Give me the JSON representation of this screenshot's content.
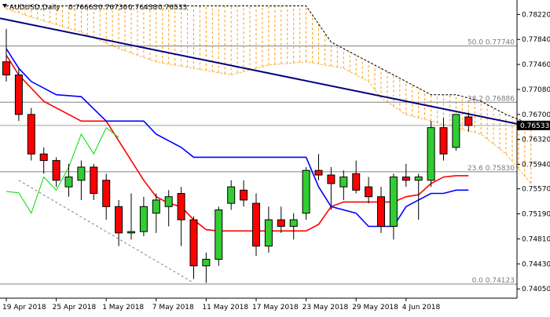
{
  "chart_data": {
    "type": "candlestick",
    "header": {
      "symbol": "AUDUSD,Daily",
      "ohlc": [
        "0.76663",
        "0.76730",
        "0.76438",
        "0.76533"
      ]
    },
    "price_axis": {
      "ymin": 0.7404,
      "ymax": 0.7826,
      "ticks": [
        "0.78220",
        "0.77840",
        "0.77460",
        "0.77080",
        "0.76700",
        "0.76320",
        "0.75940",
        "0.75570",
        "0.75190",
        "0.74810",
        "0.74430",
        "0.74050"
      ],
      "current_price_label": "0.76533"
    },
    "time_axis": {
      "labels": [
        {
          "text": "19 Apr 2018",
          "bar": 0
        },
        {
          "text": "25 Apr 2018",
          "bar": 4
        },
        {
          "text": "1 May 2018",
          "bar": 8
        },
        {
          "text": "7 May 2018",
          "bar": 12
        },
        {
          "text": "11 May 2018",
          "bar": 16
        },
        {
          "text": "17 May 2018",
          "bar": 20
        },
        {
          "text": "23 May 2018",
          "bar": 24
        },
        {
          "text": "29 May 2018",
          "bar": 28
        },
        {
          "text": "4 Jun 2018",
          "bar": 32
        }
      ]
    },
    "fib_levels": [
      {
        "label": "50.0 0.77740",
        "value": 0.7774
      },
      {
        "label": "38.2 0.76886",
        "value": 0.76886
      },
      {
        "label": "23.6 0.75830",
        "value": 0.7583
      },
      {
        "label": "0.0 0.74123",
        "value": 0.74123
      }
    ],
    "current_price": 0.76533,
    "candles": [
      {
        "o": 0.775,
        "h": 0.78,
        "l": 0.772,
        "c": 0.773
      },
      {
        "o": 0.773,
        "h": 0.774,
        "l": 0.766,
        "c": 0.767
      },
      {
        "o": 0.767,
        "h": 0.768,
        "l": 0.76,
        "c": 0.761
      },
      {
        "o": 0.761,
        "h": 0.762,
        "l": 0.758,
        "c": 0.76
      },
      {
        "o": 0.76,
        "h": 0.7605,
        "l": 0.756,
        "c": 0.757
      },
      {
        "o": 0.756,
        "h": 0.7595,
        "l": 0.7545,
        "c": 0.7575
      },
      {
        "o": 0.757,
        "h": 0.76,
        "l": 0.754,
        "c": 0.759
      },
      {
        "o": 0.759,
        "h": 0.7595,
        "l": 0.754,
        "c": 0.755
      },
      {
        "o": 0.757,
        "h": 0.758,
        "l": 0.751,
        "c": 0.753
      },
      {
        "o": 0.753,
        "h": 0.754,
        "l": 0.747,
        "c": 0.749
      },
      {
        "o": 0.749,
        "h": 0.755,
        "l": 0.748,
        "c": 0.7492
      },
      {
        "o": 0.7492,
        "h": 0.7545,
        "l": 0.7485,
        "c": 0.753
      },
      {
        "o": 0.752,
        "h": 0.755,
        "l": 0.749,
        "c": 0.754
      },
      {
        "o": 0.753,
        "h": 0.7555,
        "l": 0.75,
        "c": 0.7545
      },
      {
        "o": 0.755,
        "h": 0.756,
        "l": 0.747,
        "c": 0.751
      },
      {
        "o": 0.751,
        "h": 0.7515,
        "l": 0.742,
        "c": 0.744
      },
      {
        "o": 0.744,
        "h": 0.746,
        "l": 0.7414,
        "c": 0.745
      },
      {
        "o": 0.745,
        "h": 0.753,
        "l": 0.744,
        "c": 0.7525
      },
      {
        "o": 0.7535,
        "h": 0.757,
        "l": 0.7525,
        "c": 0.756
      },
      {
        "o": 0.7555,
        "h": 0.757,
        "l": 0.753,
        "c": 0.754
      },
      {
        "o": 0.7535,
        "h": 0.755,
        "l": 0.7455,
        "c": 0.747
      },
      {
        "o": 0.747,
        "h": 0.753,
        "l": 0.746,
        "c": 0.751
      },
      {
        "o": 0.751,
        "h": 0.753,
        "l": 0.749,
        "c": 0.75
      },
      {
        "o": 0.75,
        "h": 0.752,
        "l": 0.748,
        "c": 0.751
      },
      {
        "o": 0.752,
        "h": 0.759,
        "l": 0.751,
        "c": 0.7585
      },
      {
        "o": 0.7585,
        "h": 0.761,
        "l": 0.757,
        "c": 0.7578
      },
      {
        "o": 0.7578,
        "h": 0.759,
        "l": 0.7525,
        "c": 0.7565
      },
      {
        "o": 0.756,
        "h": 0.7585,
        "l": 0.754,
        "c": 0.7575
      },
      {
        "o": 0.758,
        "h": 0.76,
        "l": 0.755,
        "c": 0.7555
      },
      {
        "o": 0.756,
        "h": 0.7575,
        "l": 0.7535,
        "c": 0.7545
      },
      {
        "o": 0.7545,
        "h": 0.756,
        "l": 0.749,
        "c": 0.75
      },
      {
        "o": 0.75,
        "h": 0.758,
        "l": 0.748,
        "c": 0.7575
      },
      {
        "o": 0.7575,
        "h": 0.7595,
        "l": 0.756,
        "c": 0.757
      },
      {
        "o": 0.757,
        "h": 0.758,
        "l": 0.751,
        "c": 0.7575
      },
      {
        "o": 0.757,
        "h": 0.766,
        "l": 0.756,
        "c": 0.765
      },
      {
        "o": 0.765,
        "h": 0.7665,
        "l": 0.76,
        "c": 0.761
      },
      {
        "o": 0.762,
        "h": 0.767,
        "l": 0.7615,
        "c": 0.767
      },
      {
        "o": 0.76663,
        "h": 0.7673,
        "l": 0.76438,
        "c": 0.76533
      }
    ],
    "trendline": {
      "from": {
        "bar": -0.5,
        "value": 0.7816
      },
      "to": {
        "bar": 41.5,
        "value": 0.76533
      }
    },
    "indicator_lines": [
      {
        "role": "tenkan",
        "color": "#ff0000",
        "points": [
          [
            0,
            0.776
          ],
          [
            1,
            0.773
          ],
          [
            3,
            0.769
          ],
          [
            6,
            0.766
          ],
          [
            8,
            0.766
          ],
          [
            9,
            0.763
          ],
          [
            10,
            0.76
          ],
          [
            11,
            0.757
          ],
          [
            12,
            0.7545
          ],
          [
            13,
            0.7535
          ],
          [
            14,
            0.753
          ],
          [
            15,
            0.751
          ],
          [
            16,
            0.7495
          ],
          [
            17,
            0.7493
          ],
          [
            19,
            0.7493
          ],
          [
            24,
            0.7493
          ],
          [
            25,
            0.7503
          ],
          [
            26,
            0.753
          ],
          [
            27,
            0.7537
          ],
          [
            31,
            0.7537
          ],
          [
            32,
            0.7545
          ],
          [
            33,
            0.7548
          ],
          [
            34,
            0.7565
          ],
          [
            35,
            0.7575
          ],
          [
            36,
            0.7577
          ],
          [
            37,
            0.7577
          ]
        ]
      },
      {
        "role": "kijun",
        "color": "#0000ff",
        "points": [
          [
            0,
            0.777
          ],
          [
            1,
            0.774
          ],
          [
            2,
            0.772
          ],
          [
            4,
            0.77
          ],
          [
            6,
            0.7697
          ],
          [
            8,
            0.766
          ],
          [
            11,
            0.766
          ],
          [
            12,
            0.764
          ],
          [
            14,
            0.762
          ],
          [
            15,
            0.7605
          ],
          [
            24,
            0.7605
          ],
          [
            25,
            0.756
          ],
          [
            26,
            0.753
          ],
          [
            28,
            0.752
          ],
          [
            29,
            0.75
          ],
          [
            31,
            0.75
          ],
          [
            32,
            0.753
          ],
          [
            34,
            0.755
          ],
          [
            35,
            0.755
          ],
          [
            36,
            0.7555
          ],
          [
            37,
            0.7555
          ]
        ]
      },
      {
        "role": "chikou",
        "color": "#00dd00",
        "points": [
          [
            0,
            0.7553
          ],
          [
            1,
            0.7551
          ],
          [
            2,
            0.752
          ],
          [
            3,
            0.7575
          ],
          [
            4,
            0.7555
          ],
          [
            5,
            0.759
          ],
          [
            6,
            0.764
          ],
          [
            7,
            0.761
          ],
          [
            8,
            0.765
          ],
          [
            9,
            0.7635
          ]
        ]
      }
    ],
    "cloud": {
      "color": "#ff9900",
      "span_a": [
        [
          0,
          0.783
        ],
        [
          3,
          0.7812
        ],
        [
          6,
          0.7795
        ],
        [
          9,
          0.777
        ],
        [
          12,
          0.775
        ],
        [
          15,
          0.774
        ],
        [
          18,
          0.773
        ],
        [
          21,
          0.7745
        ],
        [
          24,
          0.775
        ],
        [
          27,
          0.774
        ],
        [
          29,
          0.772
        ],
        [
          30,
          0.7695
        ],
        [
          32,
          0.767
        ],
        [
          34,
          0.766
        ],
        [
          36,
          0.765
        ],
        [
          38,
          0.764
        ],
        [
          40,
          0.761
        ],
        [
          42,
          0.7565
        ]
      ],
      "span_b": [
        [
          0,
          0.7835
        ],
        [
          6,
          0.7835
        ],
        [
          9,
          0.7835
        ],
        [
          12,
          0.7835
        ],
        [
          15,
          0.7835
        ],
        [
          18,
          0.7835
        ],
        [
          21,
          0.7835
        ],
        [
          24,
          0.7835
        ],
        [
          26,
          0.778
        ],
        [
          28,
          0.776
        ],
        [
          30,
          0.774
        ],
        [
          32,
          0.772
        ],
        [
          34,
          0.77
        ],
        [
          36,
          0.77
        ],
        [
          38,
          0.769
        ],
        [
          40,
          0.767
        ],
        [
          42,
          0.7655
        ]
      ]
    },
    "support_line": {
      "from": {
        "bar": 1,
        "value": 0.757
      },
      "to": {
        "bar": 15,
        "value": 0.7414
      }
    }
  }
}
